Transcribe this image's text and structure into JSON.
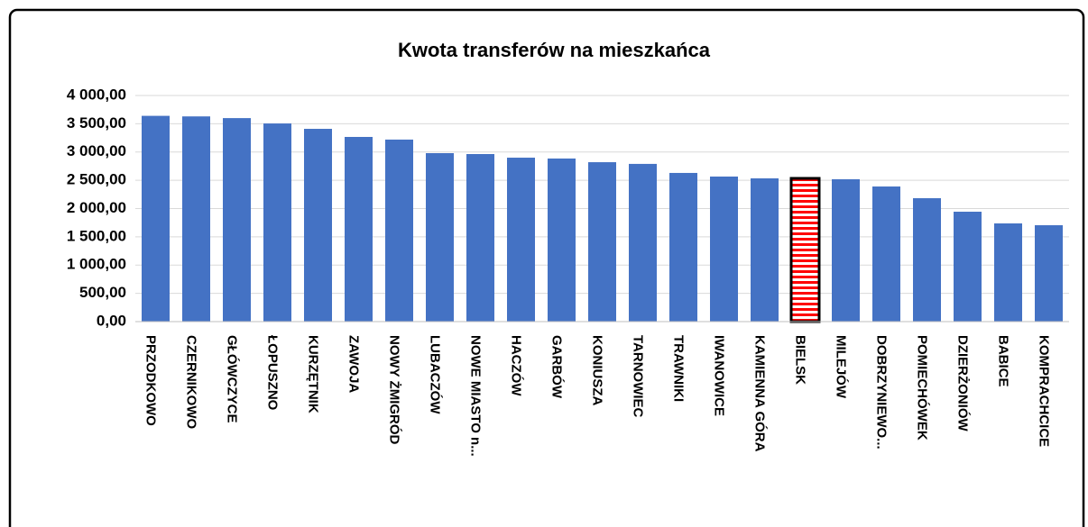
{
  "chart_data": {
    "type": "bar",
    "title": "Kwota transferów na mieszkańca",
    "categories": [
      "PRZODKOWO",
      "CZERNIKOWO",
      "GŁÓWCZYCE",
      "ŁOPUSZNO",
      "KURZĘTNIK",
      "ZAWOJA",
      "NOWY ŻMIGRÓD",
      "LUBACZÓW",
      "NOWE MIASTO n...",
      "HACZÓW",
      "GARBÓW",
      "KONIUSZA",
      "TARNOWIEC",
      "TRAWNIKI",
      "IWANOWICE",
      "KAMIENNA GÓRA",
      "BIELSK",
      "MILEJÓW",
      "DOBRZYNIEWO...",
      "POMIECHÓWEK",
      "DZIERŻONIÓW",
      "BABICE",
      "KOMPRACHCICE"
    ],
    "values": [
      3640,
      3630,
      3600,
      3505,
      3410,
      3267,
      3220,
      2980,
      2964,
      2900,
      2885,
      2820,
      2790,
      2630,
      2566,
      2534,
      2534,
      2518,
      2390,
      2183,
      1944,
      1737,
      1705
    ],
    "colors": [
      "#4472c4",
      "#4472c4",
      "#4472c4",
      "#4472c4",
      "#4472c4",
      "#4472c4",
      "#4472c4",
      "#4472c4",
      "#4472c4",
      "#4472c4",
      "#4472c4",
      "#4472c4",
      "#4472c4",
      "#4472c4",
      "#4472c4",
      "#4472c4",
      "#ff0000",
      "#4472c4",
      "#4472c4",
      "#4472c4",
      "#4472c4",
      "#4472c4",
      "#4472c4"
    ],
    "ylim": [
      0,
      4000
    ],
    "yticks": [
      {
        "value": 0,
        "label": "0,00"
      },
      {
        "value": 500,
        "label": "500,00"
      },
      {
        "value": 1000,
        "label": "1 000,00"
      },
      {
        "value": 1500,
        "label": "1 500,00"
      },
      {
        "value": 2000,
        "label": "2 000,00"
      },
      {
        "value": 2500,
        "label": "2 500,00"
      },
      {
        "value": 3000,
        "label": "3 000,00"
      },
      {
        "value": 3500,
        "label": "3 500,00"
      },
      {
        "value": 4000,
        "label": "4 000,00"
      }
    ],
    "grid": true
  }
}
